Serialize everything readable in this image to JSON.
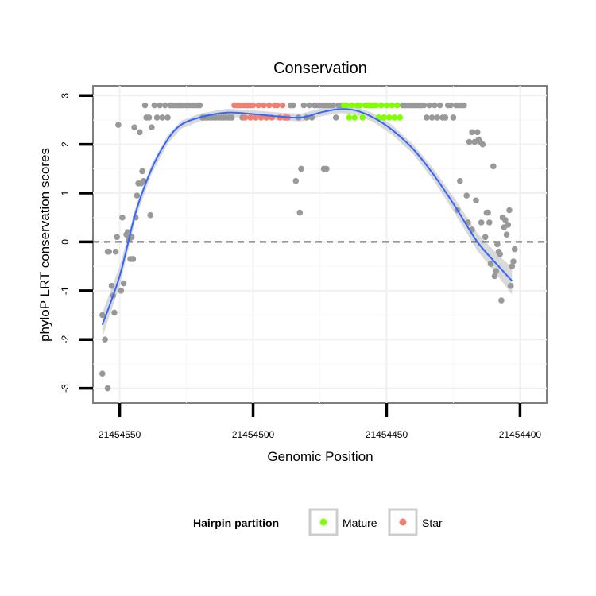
{
  "chart_data": {
    "type": "scatter",
    "title": "Conservation",
    "xlabel": "Genomic Position",
    "ylabel": "phyloP LRT conservation scores",
    "x_reversed": true,
    "xlim": [
      21454560,
      21454390
    ],
    "ylim": [
      -3.3,
      3.2
    ],
    "x_ticks": [
      21454550,
      21454500,
      21454450,
      21454400
    ],
    "x_tick_labels": [
      "21454550",
      "21454500",
      "21454450",
      "21454400"
    ],
    "y_ticks": [
      -3,
      -2,
      -1,
      0,
      1,
      2,
      3
    ],
    "y_tick_labels": [
      "-3",
      "-2",
      "-1",
      "0",
      "1",
      "2",
      "3"
    ],
    "grid": true,
    "reference_line": {
      "y": 0,
      "style": "dashed",
      "color": "#000000"
    },
    "legend": {
      "title": "Hairpin partition",
      "placement": "bottom",
      "entries": [
        {
          "label": "Mature",
          "color": "#7fff00"
        },
        {
          "label": "Star",
          "color": "#f08070"
        }
      ]
    },
    "colors": {
      "other": "#999999",
      "Mature": "#7fff00",
      "Star": "#f08070",
      "smooth": "#3366ff",
      "band": "#cccccc"
    },
    "series": [
      {
        "name": "other",
        "points": [
          [
            21454556.5,
            -1.5
          ],
          [
            21454556.5,
            -2.7
          ],
          [
            21454555.5,
            -2.0
          ],
          [
            21454554.5,
            -3.0
          ],
          [
            21454554.5,
            -0.2
          ],
          [
            21454554,
            -0.2
          ],
          [
            21454553,
            -0.9
          ],
          [
            21454552.5,
            -1.1
          ],
          [
            21454552,
            -1.45
          ],
          [
            21454551.5,
            -0.2
          ],
          [
            21454551,
            0.1
          ],
          [
            21454550.5,
            2.4
          ],
          [
            21454549.5,
            -1.0
          ],
          [
            21454549,
            0.5
          ],
          [
            21454548.5,
            -0.85
          ],
          [
            21454547.5,
            0.15
          ],
          [
            21454547,
            0.2
          ],
          [
            21454546.5,
            0.05
          ],
          [
            21454546,
            -0.35
          ],
          [
            21454545.5,
            0.1
          ],
          [
            21454545,
            -0.35
          ],
          [
            21454544.5,
            2.35
          ],
          [
            21454544,
            0.5
          ],
          [
            21454543.5,
            0.95
          ],
          [
            21454543,
            1.2
          ],
          [
            21454542.5,
            2.25
          ],
          [
            21454542,
            1.2
          ],
          [
            21454541.5,
            1.45
          ],
          [
            21454541,
            1.25
          ],
          [
            21454540.5,
            2.8
          ],
          [
            21454540,
            2.55
          ],
          [
            21454539,
            2.55
          ],
          [
            21454538.5,
            0.55
          ],
          [
            21454538,
            2.35
          ],
          [
            21454537,
            2.8
          ],
          [
            21454536,
            2.55
          ],
          [
            21454535,
            2.8
          ],
          [
            21454534,
            2.55
          ],
          [
            21454533,
            2.8
          ],
          [
            21454532,
            2.55
          ],
          [
            21454531,
            2.8
          ],
          [
            21454530,
            2.8
          ],
          [
            21454529,
            2.8
          ],
          [
            21454528,
            2.8
          ],
          [
            21454527,
            2.8
          ],
          [
            21454526,
            2.8
          ],
          [
            21454525,
            2.8
          ],
          [
            21454524,
            2.8
          ],
          [
            21454523,
            2.8
          ],
          [
            21454522,
            2.8
          ],
          [
            21454521,
            2.8
          ],
          [
            21454520,
            2.8
          ],
          [
            21454519,
            2.55
          ],
          [
            21454518,
            2.55
          ],
          [
            21454517,
            2.55
          ],
          [
            21454516,
            2.55
          ],
          [
            21454515,
            2.55
          ],
          [
            21454514,
            2.55
          ],
          [
            21454513,
            2.55
          ],
          [
            21454512,
            2.55
          ],
          [
            21454511,
            2.55
          ],
          [
            21454510,
            2.55
          ],
          [
            21454509,
            2.55
          ],
          [
            21454508,
            2.55
          ],
          [
            21454504,
            2.55
          ],
          [
            21454503,
            2.8
          ],
          [
            21454502,
            2.8
          ],
          [
            21454501,
            2.8
          ],
          [
            21454486,
            2.8
          ],
          [
            21454485,
            2.8
          ],
          [
            21454484,
            1.25
          ],
          [
            21454483,
            2.55
          ],
          [
            21454482.5,
            0.6
          ],
          [
            21454482,
            1.5
          ],
          [
            21454481,
            2.8
          ],
          [
            21454480,
            2.55
          ],
          [
            21454479,
            2.8
          ],
          [
            21454478,
            2.55
          ],
          [
            21454477,
            2.8
          ],
          [
            21454476,
            2.8
          ],
          [
            21454475,
            2.8
          ],
          [
            21454474,
            2.8
          ],
          [
            21454473.5,
            1.5
          ],
          [
            21454473,
            2.8
          ],
          [
            21454472.5,
            1.5
          ],
          [
            21454472,
            2.8
          ],
          [
            21454471,
            2.8
          ],
          [
            21454470,
            2.8
          ],
          [
            21454469,
            2.55
          ],
          [
            21454468,
            2.8
          ],
          [
            21454467,
            2.8
          ],
          [
            21454444,
            2.8
          ],
          [
            21454443,
            2.8
          ],
          [
            21454442,
            2.8
          ],
          [
            21454441,
            2.8
          ],
          [
            21454440,
            2.8
          ],
          [
            21454439,
            2.8
          ],
          [
            21454438,
            2.8
          ],
          [
            21454437,
            2.8
          ],
          [
            21454436,
            2.8
          ],
          [
            21454435,
            2.55
          ],
          [
            21454434,
            2.8
          ],
          [
            21454433,
            2.55
          ],
          [
            21454432,
            2.8
          ],
          [
            21454431,
            2.55
          ],
          [
            21454430,
            2.8
          ],
          [
            21454429,
            2.55
          ],
          [
            21454428,
            2.55
          ],
          [
            21454427,
            2.8
          ],
          [
            21454426,
            2.8
          ],
          [
            21454425,
            2.55
          ],
          [
            21454424,
            2.8
          ],
          [
            21454423.5,
            0.65
          ],
          [
            21454423,
            2.8
          ],
          [
            21454422.5,
            1.25
          ],
          [
            21454422,
            2.8
          ],
          [
            21454421,
            2.8
          ],
          [
            21454420,
            0.95
          ],
          [
            21454419.5,
            0.4
          ],
          [
            21454419,
            2.05
          ],
          [
            21454418,
            0.25
          ],
          [
            21454418,
            2.25
          ],
          [
            21454417,
            2.05
          ],
          [
            21454416.5,
            0.85
          ],
          [
            21454416,
            2.25
          ],
          [
            21454415.5,
            2.1
          ],
          [
            21454415,
            2.05
          ],
          [
            21454414.5,
            0.4
          ],
          [
            21454414,
            2.0
          ],
          [
            21454413,
            0.1
          ],
          [
            21454412.5,
            0.6
          ],
          [
            21454412,
            0.6
          ],
          [
            21454411.5,
            0.4
          ],
          [
            21454411,
            -0.45
          ],
          [
            21454410,
            1.55
          ],
          [
            21454409.5,
            -0.7
          ],
          [
            21454409,
            -0.6
          ],
          [
            21454408.5,
            -0.05
          ],
          [
            21454408,
            -0.2
          ],
          [
            21454407.5,
            -0.25
          ],
          [
            21454407,
            -1.2
          ],
          [
            21454406.5,
            0.5
          ],
          [
            21454406,
            0.3
          ],
          [
            21454405.5,
            0.45
          ],
          [
            21454405,
            0.15
          ],
          [
            21454404.5,
            0.35
          ],
          [
            21454404,
            0.65
          ],
          [
            21454403.5,
            -0.9
          ],
          [
            21454403,
            -0.5
          ],
          [
            21454402.5,
            -0.4
          ],
          [
            21454402,
            -0.15
          ]
        ]
      },
      {
        "name": "Star",
        "points": [
          [
            21454507,
            2.8
          ],
          [
            21454506,
            2.8
          ],
          [
            21454505,
            2.8
          ],
          [
            21454504,
            2.8
          ],
          [
            21454503,
            2.55
          ],
          [
            21454502,
            2.8
          ],
          [
            21454501,
            2.55
          ],
          [
            21454500,
            2.8
          ],
          [
            21454499,
            2.55
          ],
          [
            21454498,
            2.8
          ],
          [
            21454497,
            2.55
          ],
          [
            21454496,
            2.8
          ],
          [
            21454495,
            2.55
          ],
          [
            21454494,
            2.8
          ],
          [
            21454493,
            2.55
          ],
          [
            21454492,
            2.8
          ],
          [
            21454491,
            2.8
          ],
          [
            21454490,
            2.55
          ],
          [
            21454489,
            2.8
          ],
          [
            21454488,
            2.55
          ],
          [
            21454487,
            2.55
          ]
        ]
      },
      {
        "name": "Mature",
        "points": [
          [
            21454466,
            2.8
          ],
          [
            21454465,
            2.8
          ],
          [
            21454464,
            2.55
          ],
          [
            21454463,
            2.8
          ],
          [
            21454462,
            2.55
          ],
          [
            21454461,
            2.8
          ],
          [
            21454460,
            2.8
          ],
          [
            21454459,
            2.55
          ],
          [
            21454458,
            2.8
          ],
          [
            21454457,
            2.8
          ],
          [
            21454456,
            2.8
          ],
          [
            21454455,
            2.8
          ],
          [
            21454454,
            2.8
          ],
          [
            21454453,
            2.55
          ],
          [
            21454452,
            2.8
          ],
          [
            21454451,
            2.55
          ],
          [
            21454450,
            2.8
          ],
          [
            21454449,
            2.55
          ],
          [
            21454448,
            2.8
          ],
          [
            21454447,
            2.55
          ],
          [
            21454446,
            2.8
          ],
          [
            21454445,
            2.55
          ]
        ]
      }
    ],
    "smooth_curve": {
      "x": [
        21454556.5,
        21454550,
        21454544,
        21454538,
        21454532,
        21454527,
        21454520,
        21454510,
        21454500,
        21454490,
        21454482,
        21454475,
        21454468,
        21454462,
        21454455,
        21454448,
        21454440,
        21454432,
        21454424,
        21454416,
        21454408,
        21454403
      ],
      "y": [
        -1.7,
        -0.7,
        0.6,
        1.5,
        2.1,
        2.4,
        2.55,
        2.65,
        2.62,
        2.57,
        2.55,
        2.65,
        2.72,
        2.7,
        2.55,
        2.3,
        1.9,
        1.35,
        0.7,
        0.0,
        -0.5,
        -0.8
      ],
      "se": [
        0.25,
        0.2,
        0.12,
        0.1,
        0.09,
        0.08,
        0.08,
        0.08,
        0.08,
        0.08,
        0.08,
        0.08,
        0.08,
        0.08,
        0.09,
        0.1,
        0.1,
        0.12,
        0.15,
        0.18,
        0.22,
        0.28
      ]
    }
  }
}
